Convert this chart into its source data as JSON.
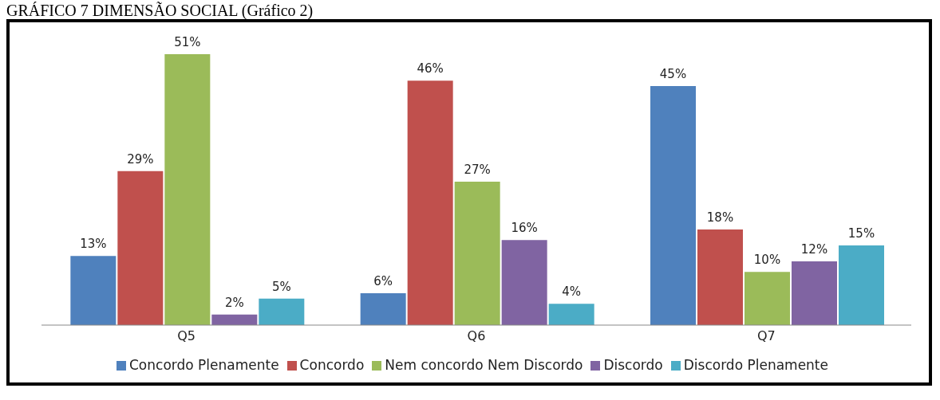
{
  "chart_data": {
    "type": "bar",
    "title": "GRÁFICO 7 DIMENSÃO SOCIAL (Gráfico 2)",
    "categories": [
      "Q5",
      "Q6",
      "Q7"
    ],
    "legend": "bottom",
    "series": [
      {
        "name": "Concordo Plenamente",
        "color": "#4f81bd",
        "values": [
          13,
          6,
          45
        ],
        "value_labels": [
          "13%",
          "6%",
          "45%"
        ]
      },
      {
        "name": "Concordo",
        "color": "#c0504d",
        "values": [
          29,
          46,
          18
        ],
        "value_labels": [
          "29%",
          "46%",
          "18%"
        ]
      },
      {
        "name": "Nem concordo Nem Discordo",
        "color": "#9bbb59",
        "values": [
          51,
          27,
          10
        ],
        "value_labels": [
          "51%",
          "27%",
          "10%"
        ]
      },
      {
        "name": "Discordo",
        "color": "#8064a2",
        "values": [
          2,
          16,
          12
        ],
        "value_labels": [
          "2%",
          "16%",
          "12%"
        ]
      },
      {
        "name": "Discordo Plenamente",
        "color": "#4bacc6",
        "values": [
          5,
          4,
          15
        ],
        "value_labels": [
          "5%",
          "4%",
          "15%"
        ]
      }
    ]
  }
}
